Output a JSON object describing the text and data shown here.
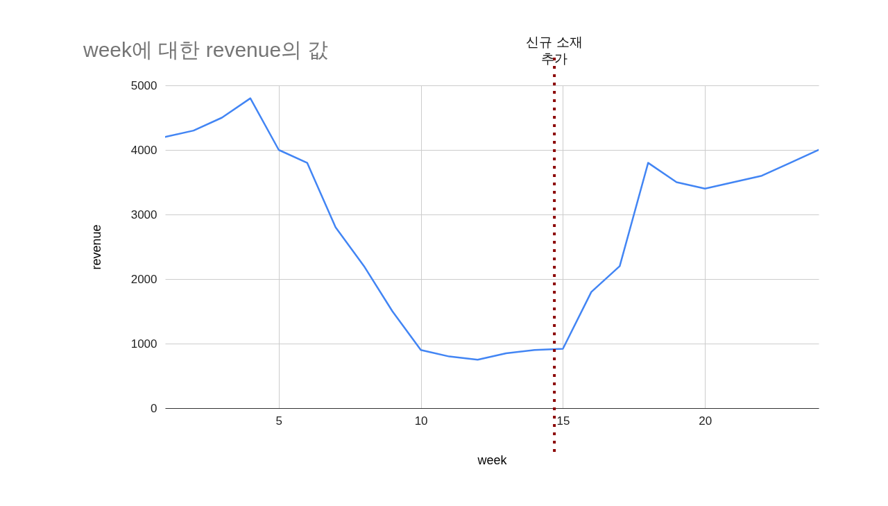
{
  "chart_data": {
    "type": "line",
    "title": "week에 대한 revenue의 값",
    "xlabel": "week",
    "ylabel": "revenue",
    "x": [
      1,
      2,
      3,
      4,
      5,
      6,
      7,
      8,
      9,
      10,
      11,
      12,
      13,
      14,
      15,
      16,
      17,
      18,
      19,
      20,
      21,
      22,
      23,
      24
    ],
    "series": [
      {
        "color": "#4285f4",
        "values": [
          4200,
          4300,
          4500,
          4800,
          4000,
          3800,
          2800,
          2200,
          1500,
          900,
          800,
          750,
          850,
          900,
          920,
          1800,
          2200,
          3800,
          3500,
          3400,
          3500,
          3600,
          3800,
          4000
        ]
      }
    ],
    "xlim": [
      1,
      24
    ],
    "xticks": [
      5,
      10,
      15,
      20
    ],
    "ylim": [
      0,
      5000
    ],
    "yticks": [
      0,
      1000,
      2000,
      3000,
      4000,
      5000
    ],
    "grid": true,
    "marker": "none",
    "line_style": "solid",
    "ref_lines": [
      {
        "axis": "x",
        "value": 14.7,
        "label": "신규 소재\n추가",
        "color": "#8b0000",
        "line_style": "dotted"
      }
    ]
  }
}
